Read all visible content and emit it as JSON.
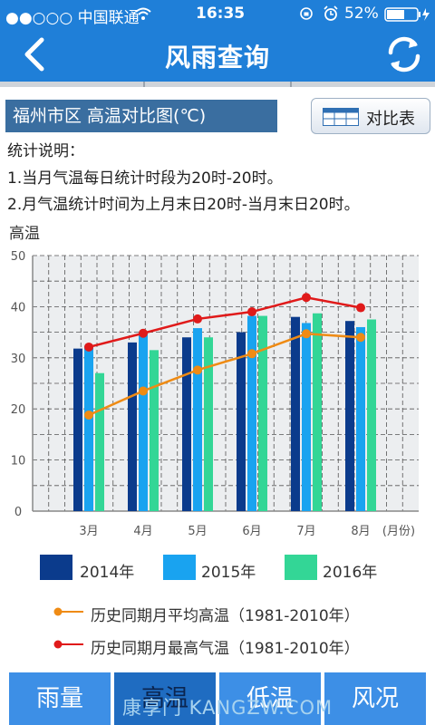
{
  "status": {
    "carrier": "●●○○○ 中国联通",
    "time": "16:35",
    "battery": "52%"
  },
  "nav": {
    "title": "风雨查询"
  },
  "header": {
    "chart_title": "福州市区 高温对比图(℃)",
    "compare_label": "对比表"
  },
  "notes": {
    "heading": "统计说明：",
    "line1": "1.当月气温每日统计时段为20时-20时。",
    "line2": "2.月气温统计时间为上月末日20时-当月末日20时。"
  },
  "chart_data": {
    "type": "bar",
    "ylabel": "高温",
    "xunit": "(月份)",
    "categories": [
      "3月",
      "4月",
      "5月",
      "6月",
      "7月",
      "8月"
    ],
    "ylim": [
      0,
      50
    ],
    "yticks": [
      "0",
      "10",
      "20",
      "30",
      "40",
      "50"
    ],
    "series": [
      {
        "name": "2014年",
        "color": "#0b3b8c",
        "values": [
          31.8,
          33,
          34,
          35,
          38,
          37.2
        ]
      },
      {
        "name": "2015年",
        "color": "#19a3f0",
        "values": [
          32.3,
          35,
          35.8,
          38.2,
          36.8,
          36
        ]
      },
      {
        "name": "2016年",
        "color": "#33d696",
        "values": [
          27,
          31.5,
          34,
          38.2,
          38.7,
          37.5
        ]
      }
    ],
    "lines": [
      {
        "name": "历史同期月平均高温（1981-2010年）",
        "color": "#ef8b14",
        "values": [
          18.8,
          23.5,
          27.6,
          30.8,
          34.7,
          34
        ]
      },
      {
        "name": "历史同期月最高气温（1981-2010年）",
        "color": "#e01a1a",
        "values": [
          32.1,
          34.8,
          37.6,
          39,
          41.8,
          39.8
        ]
      }
    ]
  },
  "tabs": [
    {
      "label": "雨量"
    },
    {
      "label": "高温"
    },
    {
      "label": "低温"
    },
    {
      "label": "风况"
    }
  ],
  "watermark": "康享门 KANGZW.COM"
}
